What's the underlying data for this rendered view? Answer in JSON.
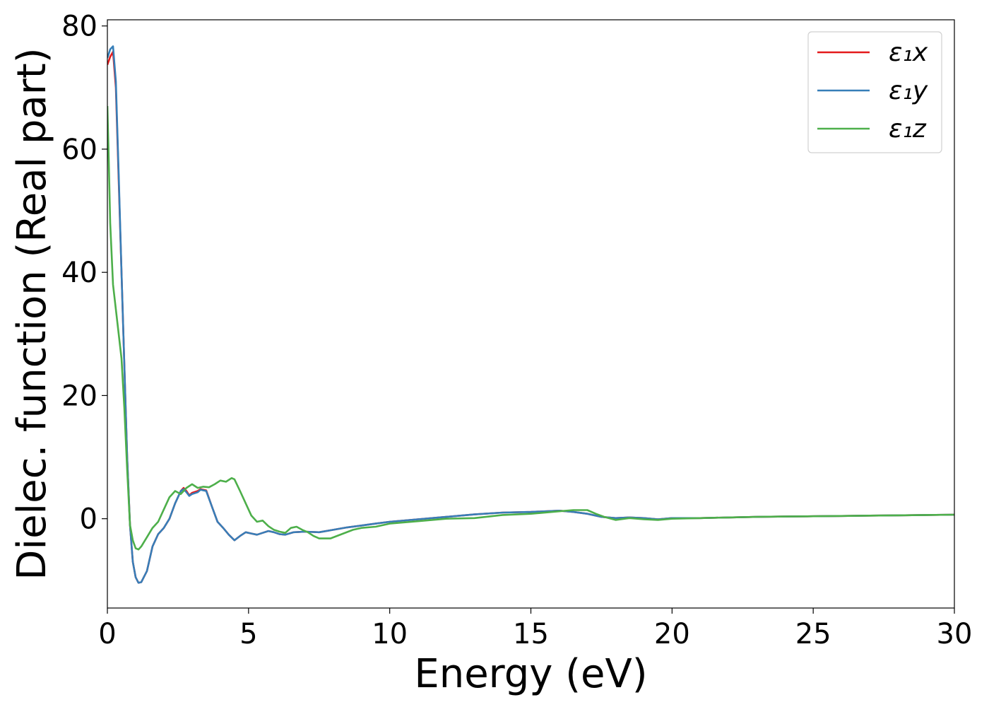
{
  "chart_data": {
    "type": "line",
    "title": "",
    "xlabel": "Energy (eV)",
    "ylabel": "Dielec. function (Real part)",
    "xlim": [
      0,
      30
    ],
    "ylim": [
      -14.5,
      81
    ],
    "xticks": [
      0,
      5,
      10,
      15,
      20,
      25,
      30
    ],
    "yticks": [
      0,
      20,
      40,
      60,
      80
    ],
    "grid": false,
    "legend_position": "top-right",
    "series": [
      {
        "name": "ε₁x",
        "color": "#e41a1c",
        "points": [
          [
            0,
            73.7
          ],
          [
            0.1,
            75
          ],
          [
            0.2,
            75.8
          ],
          [
            0.3,
            70
          ],
          [
            0.4,
            55
          ],
          [
            0.5,
            40
          ],
          [
            0.6,
            25
          ],
          [
            0.7,
            10
          ],
          [
            0.8,
            -1
          ],
          [
            0.9,
            -7
          ],
          [
            1.0,
            -9.5
          ],
          [
            1.1,
            -10.4
          ],
          [
            1.2,
            -10.3
          ],
          [
            1.4,
            -8.5
          ],
          [
            1.6,
            -4.5
          ],
          [
            1.8,
            -2.5
          ],
          [
            2.0,
            -1.5
          ],
          [
            2.2,
            0
          ],
          [
            2.4,
            2.5
          ],
          [
            2.6,
            4.5
          ],
          [
            2.7,
            5
          ],
          [
            2.8,
            4.5
          ],
          [
            2.9,
            3.8
          ],
          [
            3.0,
            4.2
          ],
          [
            3.2,
            4.5
          ],
          [
            3.3,
            4.8
          ],
          [
            3.5,
            4.6
          ],
          [
            3.7,
            2
          ],
          [
            3.9,
            -0.5
          ],
          [
            4.1,
            -1.5
          ],
          [
            4.3,
            -2.6
          ],
          [
            4.5,
            -3.5
          ],
          [
            4.7,
            -2.8
          ],
          [
            4.9,
            -2.2
          ],
          [
            5.1,
            -2.4
          ],
          [
            5.3,
            -2.6
          ],
          [
            5.5,
            -2.3
          ],
          [
            5.7,
            -2
          ],
          [
            5.9,
            -2.2
          ],
          [
            6.1,
            -2.5
          ],
          [
            6.3,
            -2.6
          ],
          [
            6.6,
            -2.2
          ],
          [
            7.0,
            -2.1
          ],
          [
            7.5,
            -2.2
          ],
          [
            8.0,
            -1.8
          ],
          [
            8.5,
            -1.4
          ],
          [
            9.0,
            -1.1
          ],
          [
            9.5,
            -0.8
          ],
          [
            10,
            -0.5
          ],
          [
            11,
            -0.1
          ],
          [
            12,
            0.3
          ],
          [
            13,
            0.7
          ],
          [
            14,
            1
          ],
          [
            15,
            1.1
          ],
          [
            16,
            1.3
          ],
          [
            16.5,
            1.1
          ],
          [
            17,
            0.8
          ],
          [
            17.5,
            0.3
          ],
          [
            18,
            0.1
          ],
          [
            18.5,
            0.2
          ],
          [
            19,
            0.1
          ],
          [
            19.5,
            -0.1
          ],
          [
            20,
            0.1
          ],
          [
            21,
            0.1
          ],
          [
            22,
            0.2
          ],
          [
            23,
            0.3
          ],
          [
            24,
            0.35
          ],
          [
            25,
            0.4
          ],
          [
            26,
            0.45
          ],
          [
            27,
            0.5
          ],
          [
            28,
            0.55
          ],
          [
            29,
            0.6
          ],
          [
            30,
            0.65
          ]
        ]
      },
      {
        "name": "ε₁y",
        "color": "#377eb8",
        "points": [
          [
            0,
            74.8
          ],
          [
            0.1,
            76.2
          ],
          [
            0.2,
            76.7
          ],
          [
            0.3,
            71
          ],
          [
            0.4,
            56
          ],
          [
            0.5,
            40
          ],
          [
            0.6,
            25
          ],
          [
            0.7,
            10
          ],
          [
            0.8,
            -1
          ],
          [
            0.9,
            -7
          ],
          [
            1.0,
            -9.5
          ],
          [
            1.1,
            -10.4
          ],
          [
            1.2,
            -10.3
          ],
          [
            1.4,
            -8.5
          ],
          [
            1.6,
            -4.5
          ],
          [
            1.8,
            -2.5
          ],
          [
            2.0,
            -1.5
          ],
          [
            2.2,
            0
          ],
          [
            2.4,
            2.5
          ],
          [
            2.6,
            4.5
          ],
          [
            2.7,
            4.8
          ],
          [
            2.8,
            4.3
          ],
          [
            2.9,
            3.7
          ],
          [
            3.0,
            4
          ],
          [
            3.2,
            4.3
          ],
          [
            3.3,
            4.7
          ],
          [
            3.5,
            4.5
          ],
          [
            3.7,
            2
          ],
          [
            3.9,
            -0.5
          ],
          [
            4.1,
            -1.5
          ],
          [
            4.3,
            -2.6
          ],
          [
            4.5,
            -3.5
          ],
          [
            4.7,
            -2.8
          ],
          [
            4.9,
            -2.2
          ],
          [
            5.1,
            -2.4
          ],
          [
            5.3,
            -2.6
          ],
          [
            5.5,
            -2.3
          ],
          [
            5.7,
            -2
          ],
          [
            5.9,
            -2.2
          ],
          [
            6.1,
            -2.5
          ],
          [
            6.3,
            -2.6
          ],
          [
            6.6,
            -2.2
          ],
          [
            7.0,
            -2.1
          ],
          [
            7.5,
            -2.2
          ],
          [
            8.0,
            -1.8
          ],
          [
            8.5,
            -1.4
          ],
          [
            9.0,
            -1.1
          ],
          [
            9.5,
            -0.8
          ],
          [
            10,
            -0.5
          ],
          [
            11,
            -0.1
          ],
          [
            12,
            0.3
          ],
          [
            13,
            0.7
          ],
          [
            14,
            1
          ],
          [
            15,
            1.1
          ],
          [
            16,
            1.3
          ],
          [
            16.5,
            1.1
          ],
          [
            17,
            0.8
          ],
          [
            17.5,
            0.3
          ],
          [
            18,
            0.1
          ],
          [
            18.5,
            0.2
          ],
          [
            19,
            0.1
          ],
          [
            19.5,
            -0.1
          ],
          [
            20,
            0.1
          ],
          [
            21,
            0.1
          ],
          [
            22,
            0.2
          ],
          [
            23,
            0.3
          ],
          [
            24,
            0.35
          ],
          [
            25,
            0.4
          ],
          [
            26,
            0.45
          ],
          [
            27,
            0.5
          ],
          [
            28,
            0.55
          ],
          [
            29,
            0.6
          ],
          [
            30,
            0.65
          ]
        ]
      },
      {
        "name": "ε₁z",
        "color": "#4daf4a",
        "points": [
          [
            0,
            67
          ],
          [
            0.05,
            58
          ],
          [
            0.1,
            48
          ],
          [
            0.2,
            38
          ],
          [
            0.3,
            34
          ],
          [
            0.4,
            30
          ],
          [
            0.5,
            26
          ],
          [
            0.6,
            18
          ],
          [
            0.7,
            8
          ],
          [
            0.8,
            -1
          ],
          [
            0.9,
            -3.5
          ],
          [
            1.0,
            -4.8
          ],
          [
            1.1,
            -5
          ],
          [
            1.2,
            -4.5
          ],
          [
            1.4,
            -3
          ],
          [
            1.6,
            -1.5
          ],
          [
            1.8,
            -0.5
          ],
          [
            2.0,
            1.5
          ],
          [
            2.2,
            3.5
          ],
          [
            2.4,
            4.5
          ],
          [
            2.6,
            4
          ],
          [
            2.8,
            5
          ],
          [
            3.0,
            5.6
          ],
          [
            3.2,
            5
          ],
          [
            3.4,
            5.2
          ],
          [
            3.6,
            5.1
          ],
          [
            3.8,
            5.6
          ],
          [
            4.0,
            6.2
          ],
          [
            4.2,
            6
          ],
          [
            4.4,
            6.6
          ],
          [
            4.5,
            6.4
          ],
          [
            4.7,
            4.5
          ],
          [
            4.9,
            2.5
          ],
          [
            5.1,
            0.5
          ],
          [
            5.3,
            -0.5
          ],
          [
            5.5,
            -0.3
          ],
          [
            5.7,
            -1.2
          ],
          [
            5.9,
            -1.8
          ],
          [
            6.1,
            -2.1
          ],
          [
            6.3,
            -2.3
          ],
          [
            6.5,
            -1.5
          ],
          [
            6.7,
            -1.3
          ],
          [
            6.9,
            -1.8
          ],
          [
            7.1,
            -2.2
          ],
          [
            7.3,
            -2.8
          ],
          [
            7.5,
            -3.2
          ],
          [
            7.9,
            -3.2
          ],
          [
            8.3,
            -2.5
          ],
          [
            8.7,
            -1.8
          ],
          [
            9.0,
            -1.5
          ],
          [
            9.5,
            -1.3
          ],
          [
            10,
            -0.8
          ],
          [
            11,
            -0.4
          ],
          [
            12,
            0
          ],
          [
            13,
            0.1
          ],
          [
            14,
            0.6
          ],
          [
            15,
            0.8
          ],
          [
            16,
            1.2
          ],
          [
            16.5,
            1.4
          ],
          [
            17,
            1.4
          ],
          [
            17.3,
            0.8
          ],
          [
            17.6,
            0.3
          ],
          [
            18,
            -0.2
          ],
          [
            18.5,
            0.1
          ],
          [
            19,
            -0.1
          ],
          [
            19.5,
            -0.2
          ],
          [
            20,
            0
          ],
          [
            21,
            0.1
          ],
          [
            22,
            0.2
          ],
          [
            23,
            0.3
          ],
          [
            24,
            0.35
          ],
          [
            25,
            0.4
          ],
          [
            26,
            0.45
          ],
          [
            27,
            0.5
          ],
          [
            28,
            0.55
          ],
          [
            29,
            0.6
          ],
          [
            30,
            0.65
          ]
        ]
      }
    ]
  }
}
